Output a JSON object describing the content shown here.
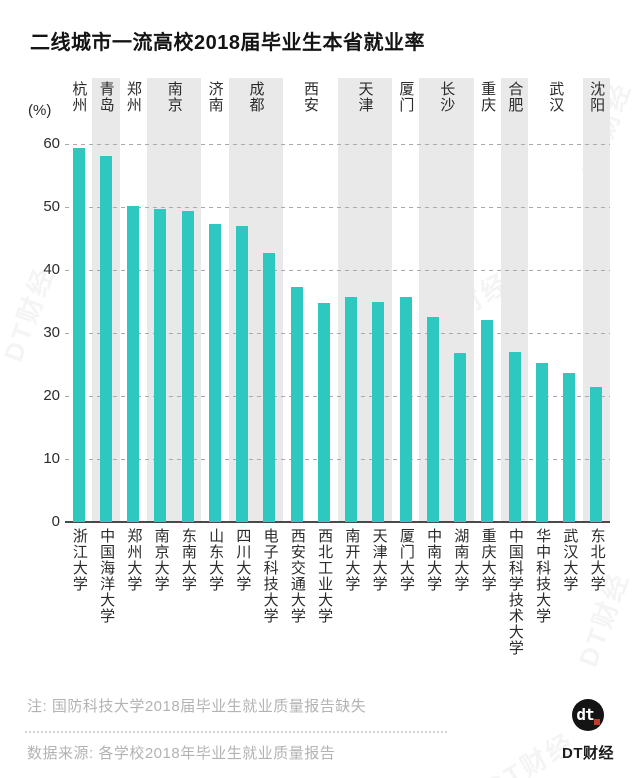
{
  "title": "二线城市一流高校2018届毕业生本省就业率",
  "footer": {
    "note": "注: 国防科技大学2018届毕业生就业质量报告缺失",
    "source": "数据来源: 各学校2018年毕业生就业质量报告"
  },
  "logo": {
    "glyph": "dt",
    "name": "DT财经"
  },
  "watermark": "DT财经",
  "colors": {
    "bar": "#2fc8c0",
    "band": "#e9e9e9",
    "grid": "#aaaaaa",
    "axis": "#4a4a4a",
    "text": "#2b2b2b",
    "muted_text": "#b3b3b3",
    "logo_red": "#bf3b2a"
  },
  "chart_data": {
    "type": "bar",
    "title": "二线城市一流高校2018届毕业生本省就业率",
    "unit_label": "(%)",
    "ylabel": "就业率 (%)",
    "ylim": [
      0,
      60
    ],
    "yticks": [
      0,
      10,
      20,
      30,
      40,
      50,
      60
    ],
    "grid": "horizontal-dashed",
    "legend": "none",
    "shading_note": "alternate city groups have light gray background bands",
    "groups": [
      {
        "city": "杭州",
        "shaded": false,
        "bars": [
          {
            "university": "浙江大学",
            "value": 59.3
          }
        ]
      },
      {
        "city": "青岛",
        "shaded": true,
        "bars": [
          {
            "university": "中国海洋大学",
            "value": 58.1
          }
        ]
      },
      {
        "city": "郑州",
        "shaded": false,
        "bars": [
          {
            "university": "郑州大学",
            "value": 50.1
          }
        ]
      },
      {
        "city": "南京",
        "shaded": true,
        "bars": [
          {
            "university": "南京大学",
            "value": 49.7
          },
          {
            "university": "东南大学",
            "value": 49.3
          }
        ]
      },
      {
        "city": "济南",
        "shaded": false,
        "bars": [
          {
            "university": "山东大学",
            "value": 47.3
          }
        ]
      },
      {
        "city": "成都",
        "shaded": true,
        "bars": [
          {
            "university": "四川大学",
            "value": 47.0
          },
          {
            "university": "电子科技大学",
            "value": 42.7
          }
        ]
      },
      {
        "city": "西安",
        "shaded": false,
        "bars": [
          {
            "university": "西安交通大学",
            "value": 37.3
          },
          {
            "university": "西北工业大学",
            "value": 34.7
          }
        ]
      },
      {
        "city": "天津",
        "shaded": true,
        "bars": [
          {
            "university": "南开大学",
            "value": 35.7
          },
          {
            "university": "天津大学",
            "value": 34.9
          }
        ]
      },
      {
        "city": "厦门",
        "shaded": false,
        "bars": [
          {
            "university": "厦门大学",
            "value": 35.7
          }
        ]
      },
      {
        "city": "长沙",
        "shaded": true,
        "bars": [
          {
            "university": "中南大学",
            "value": 32.6
          },
          {
            "university": "湖南大学",
            "value": 26.9
          }
        ]
      },
      {
        "city": "重庆",
        "shaded": false,
        "bars": [
          {
            "university": "重庆大学",
            "value": 32.1
          }
        ]
      },
      {
        "city": "合肥",
        "shaded": true,
        "bars": [
          {
            "university": "中国科学技术大学",
            "value": 27.0
          }
        ]
      },
      {
        "city": "武汉",
        "shaded": false,
        "bars": [
          {
            "university": "华中科技大学",
            "value": 25.3
          },
          {
            "university": "武汉大学",
            "value": 23.7
          }
        ]
      },
      {
        "city": "沈阳",
        "shaded": true,
        "bars": [
          {
            "university": "东北大学",
            "value": 21.5
          }
        ]
      }
    ]
  }
}
